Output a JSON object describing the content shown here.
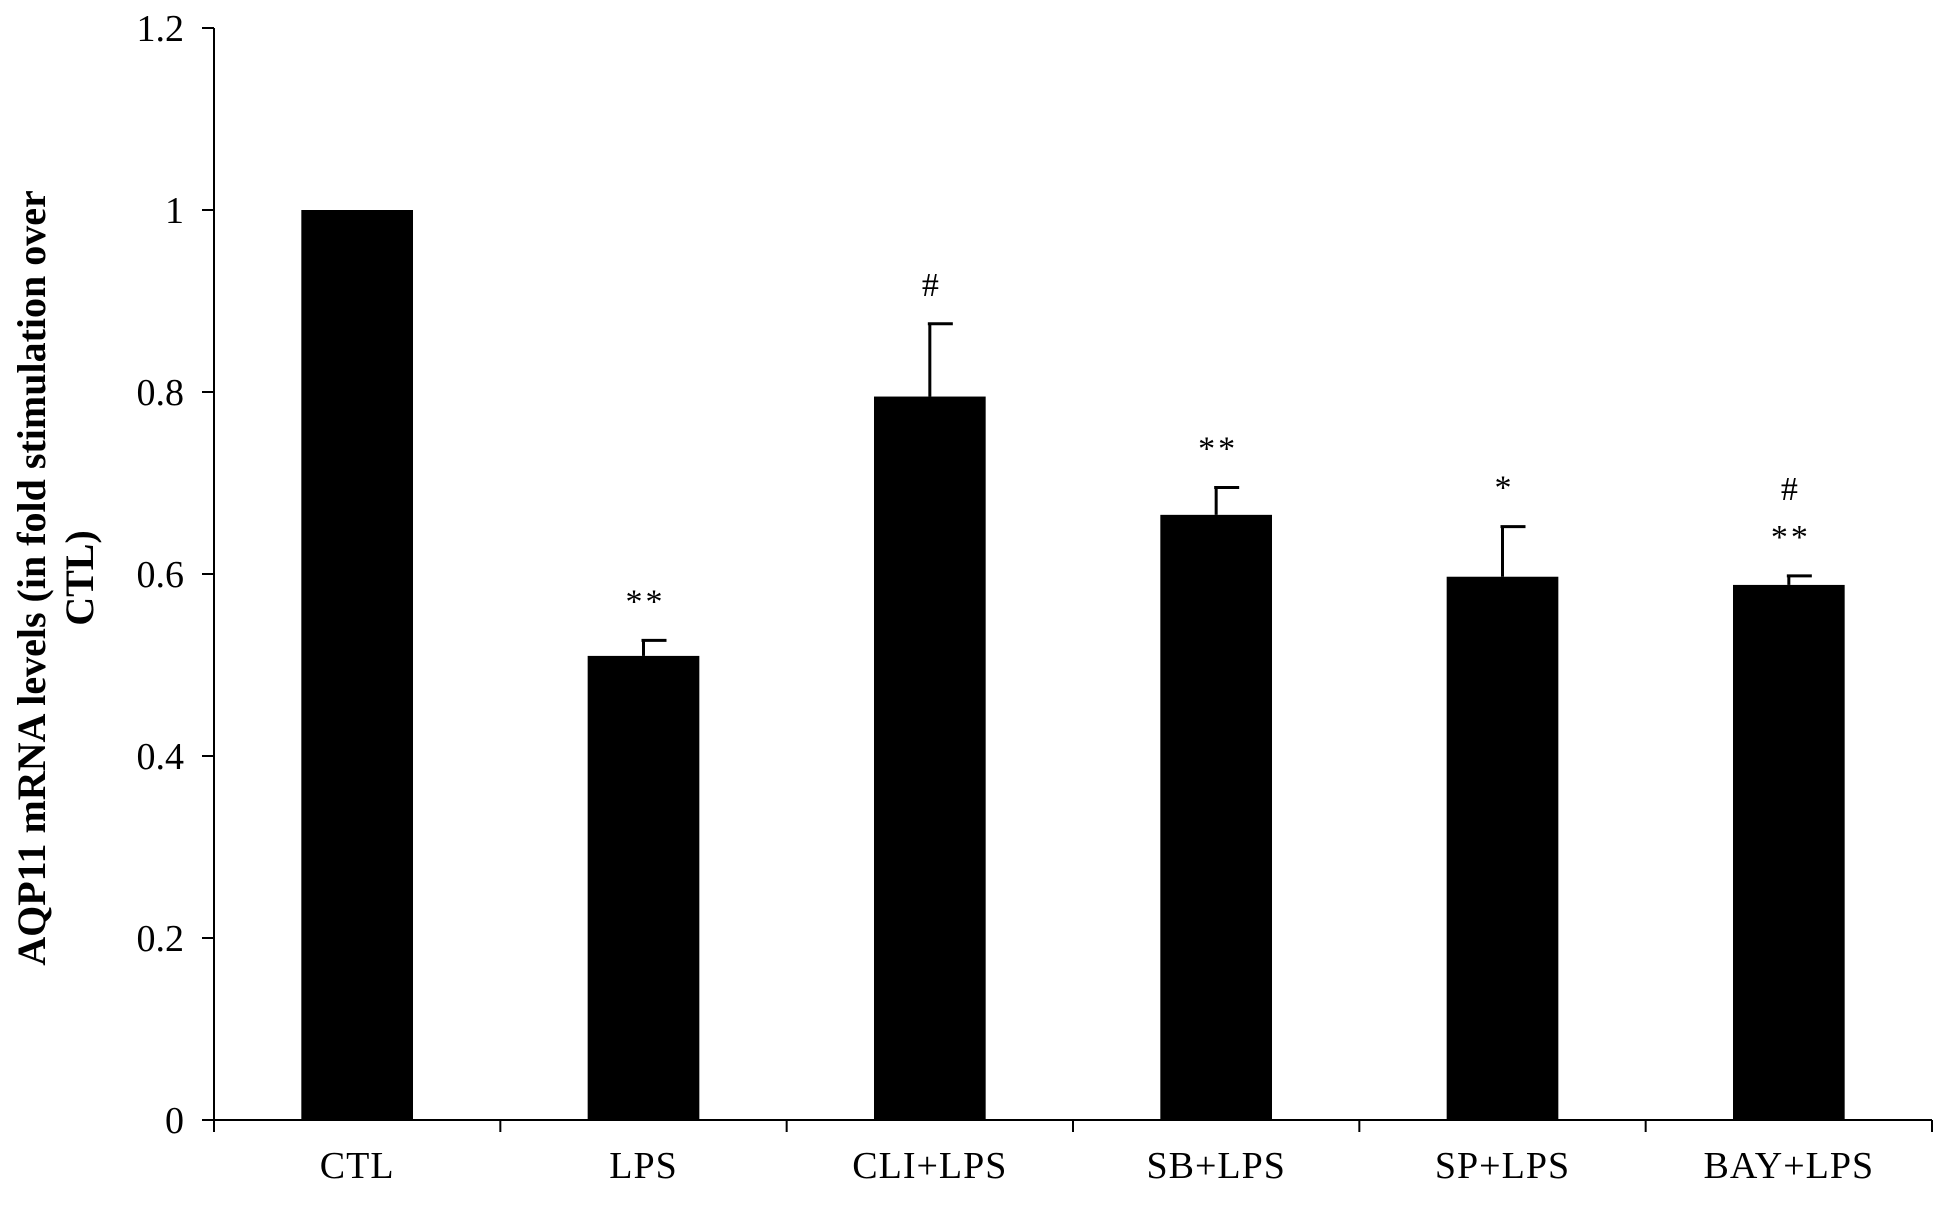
{
  "chart_data": {
    "type": "bar",
    "categories": [
      "CTL",
      "LPS",
      "CLI+LPS",
      "SB+LPS",
      "SP+LPS",
      "BAY+LPS"
    ],
    "values": [
      1.0,
      0.51,
      0.795,
      0.665,
      0.597,
      0.588
    ],
    "errors": [
      0,
      0.017,
      0.08,
      0.03,
      0.055,
      0.01
    ],
    "annotations": [
      [],
      [
        "**"
      ],
      [
        "#"
      ],
      [
        "**"
      ],
      [
        "*"
      ],
      [
        "**",
        "#"
      ]
    ],
    "ylabel_line1": "AQP11 mRNA levels (in fold stimulation over",
    "ylabel_line2": "CTL)",
    "ylim": [
      0,
      1.2
    ],
    "yticks": [
      0,
      0.2,
      0.4,
      0.6,
      0.8,
      1,
      1.2
    ],
    "ytick_labels": [
      "0",
      "0.2",
      "0.4",
      "0.6",
      "0.8",
      "1",
      "1.2"
    ],
    "grid": false,
    "legend": "none",
    "bar_color": "#000000"
  }
}
